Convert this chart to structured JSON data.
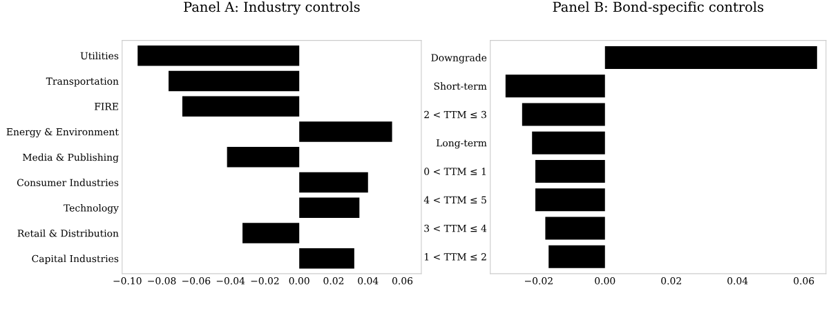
{
  "chart_data": [
    {
      "type": "bar",
      "orientation": "horizontal",
      "title": "Panel A: Industry controls",
      "categories": [
        "Utilities",
        "Transportation",
        "FIRE",
        "Energy & Environment",
        "Media & Publishing",
        "Consumer Industries",
        "Technology",
        "Retail & Distribution",
        "Capital Industries"
      ],
      "values": [
        -0.094,
        -0.076,
        -0.068,
        0.054,
        -0.042,
        0.04,
        0.035,
        -0.033,
        0.032
      ],
      "color": "#000000",
      "xlim": [
        -0.103,
        0.071
      ],
      "xticks": [
        {
          "value": -0.1,
          "label": "−0.10"
        },
        {
          "value": -0.08,
          "label": "−0.08"
        },
        {
          "value": -0.06,
          "label": "−0.06"
        },
        {
          "value": -0.04,
          "label": "−0.04"
        },
        {
          "value": -0.02,
          "label": "−0.02"
        },
        {
          "value": 0,
          "label": "0.00"
        },
        {
          "value": 0.02,
          "label": "0.02"
        },
        {
          "value": 0.04,
          "label": "0.04"
        },
        {
          "value": 0.06,
          "label": "0.06"
        }
      ],
      "grid": false
    },
    {
      "type": "bar",
      "orientation": "horizontal",
      "title": "Panel B: Bond-specific controls",
      "categories": [
        "Downgrade",
        "Short-term",
        "2 < TTM ≤ 3",
        "Long-term",
        "0 < TTM ≤ 1",
        "4 < TTM ≤ 5",
        "3 < TTM ≤ 4",
        "1 < TTM ≤ 2"
      ],
      "values": [
        0.064,
        -0.03,
        -0.025,
        -0.022,
        -0.021,
        -0.021,
        -0.018,
        -0.017
      ],
      "color": "#000000",
      "xlim": [
        -0.0346,
        0.0667
      ],
      "xticks": [
        {
          "value": -0.02,
          "label": "−0.02"
        },
        {
          "value": 0,
          "label": "0.00"
        },
        {
          "value": 0.02,
          "label": "0.02"
        },
        {
          "value": 0.04,
          "label": "0.04"
        },
        {
          "value": 0.06,
          "label": "0.06"
        }
      ],
      "grid": false
    }
  ]
}
